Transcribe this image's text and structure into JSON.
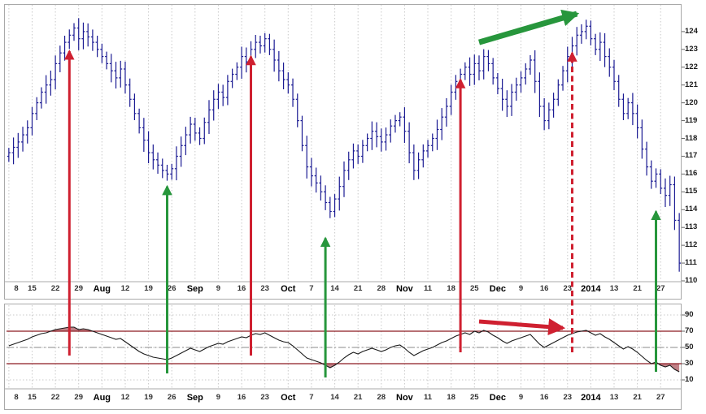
{
  "colors": {
    "bar": "#1b1b93",
    "rsi_line": "#1a1a1a",
    "threshold": "#8c1a22",
    "mid_line": "#8a8a8a",
    "grid": "#c9c9c9",
    "red_arrow": "#cf2030",
    "green_arrow": "#27963c",
    "band_fill": "#8c1a22",
    "panel_border": "#a9a9a9"
  },
  "x_ticks": [
    {
      "label": "8",
      "i": 0,
      "month": false
    },
    {
      "label": "15",
      "i": 5,
      "month": false
    },
    {
      "label": "22",
      "i": 10,
      "month": false
    },
    {
      "label": "29",
      "i": 15,
      "month": false
    },
    {
      "label": "Aug",
      "i": 20,
      "month": true
    },
    {
      "label": "12",
      "i": 25,
      "month": false
    },
    {
      "label": "19",
      "i": 30,
      "month": false
    },
    {
      "label": "26",
      "i": 35,
      "month": false
    },
    {
      "label": "Sep",
      "i": 40,
      "month": true
    },
    {
      "label": "9",
      "i": 45,
      "month": false
    },
    {
      "label": "16",
      "i": 50,
      "month": false
    },
    {
      "label": "23",
      "i": 55,
      "month": false
    },
    {
      "label": "Oct",
      "i": 60,
      "month": true
    },
    {
      "label": "7",
      "i": 65,
      "month": false
    },
    {
      "label": "14",
      "i": 70,
      "month": false
    },
    {
      "label": "21",
      "i": 75,
      "month": false
    },
    {
      "label": "28",
      "i": 80,
      "month": false
    },
    {
      "label": "Nov",
      "i": 85,
      "month": true
    },
    {
      "label": "11",
      "i": 90,
      "month": false
    },
    {
      "label": "18",
      "i": 95,
      "month": false
    },
    {
      "label": "25",
      "i": 100,
      "month": false
    },
    {
      "label": "Dec",
      "i": 105,
      "month": true
    },
    {
      "label": "9",
      "i": 110,
      "month": false
    },
    {
      "label": "16",
      "i": 115,
      "month": false
    },
    {
      "label": "23",
      "i": 120,
      "month": false
    },
    {
      "label": "2014",
      "i": 125,
      "month": true
    },
    {
      "label": "13",
      "i": 130,
      "month": false
    },
    {
      "label": "21",
      "i": 135,
      "month": false
    },
    {
      "label": "27",
      "i": 140,
      "month": false
    }
  ],
  "chart_data": [
    {
      "type": "ohlc",
      "panel": "price",
      "title": "",
      "xlabel": "",
      "ylabel": "",
      "ylim": [
        110,
        125.5
      ],
      "y_ticks": [
        124,
        123,
        122,
        121,
        120,
        119,
        118,
        117,
        116,
        115,
        114,
        113,
        112,
        111,
        110
      ],
      "grid": true,
      "closes": [
        117.2,
        117.5,
        117.8,
        118.2,
        118.6,
        119.4,
        120.0,
        120.6,
        121.0,
        121.3,
        122.2,
        122.8,
        123.4,
        123.8,
        124.2,
        123.6,
        124.0,
        123.7,
        123.4,
        123.0,
        122.6,
        122.2,
        121.8,
        121.4,
        121.9,
        121.0,
        120.2,
        119.4,
        118.6,
        117.9,
        117.2,
        116.8,
        116.5,
        116.2,
        116.0,
        116.3,
        117.0,
        117.6,
        118.2,
        118.8,
        118.3,
        118.0,
        118.9,
        119.6,
        120.2,
        120.6,
        120.3,
        121.2,
        121.6,
        122.0,
        122.6,
        122.3,
        123.0,
        123.4,
        123.2,
        123.6,
        123.0,
        122.4,
        121.8,
        121.3,
        121.0,
        120.2,
        119.0,
        117.6,
        116.4,
        115.9,
        115.5,
        115.0,
        114.4,
        113.9,
        114.6,
        115.3,
        116.2,
        116.8,
        117.3,
        117.0,
        117.6,
        118.0,
        118.4,
        118.1,
        117.8,
        118.2,
        118.7,
        119.0,
        119.2,
        118.4,
        117.2,
        116.2,
        116.8,
        117.3,
        117.6,
        118.0,
        118.5,
        119.2,
        119.8,
        120.6,
        121.2,
        121.6,
        122.0,
        121.6,
        122.2,
        121.8,
        122.6,
        122.2,
        121.4,
        120.8,
        120.2,
        119.8,
        120.6,
        121.0,
        121.4,
        121.9,
        122.4,
        121.2,
        119.8,
        119.0,
        119.6,
        120.2,
        121.0,
        121.8,
        122.6,
        123.2,
        123.8,
        124.0,
        124.3,
        123.6,
        123.0,
        123.4,
        122.6,
        122.0,
        121.2,
        120.2,
        119.4,
        120.0,
        119.4,
        118.6,
        117.4,
        116.4,
        115.6,
        116.0,
        115.2,
        114.8,
        115.4,
        113.4,
        111.0
      ]
    },
    {
      "type": "line",
      "panel": "oscillator",
      "title": "",
      "ylim": [
        0,
        102
      ],
      "y_ticks": [
        90,
        70,
        50,
        30,
        10
      ],
      "levels": {
        "overbought": 70,
        "mid": 50,
        "oversold": 30
      },
      "grid": true,
      "values": [
        52,
        54,
        56,
        58,
        60,
        63,
        65,
        67,
        68,
        70,
        72,
        73,
        74,
        75,
        75,
        72,
        73,
        72,
        70,
        68,
        66,
        64,
        62,
        60,
        61,
        57,
        53,
        49,
        45,
        42,
        40,
        38,
        37,
        36,
        35,
        37,
        40,
        43,
        46,
        49,
        47,
        45,
        48,
        51,
        53,
        55,
        54,
        57,
        59,
        61,
        63,
        62,
        65,
        67,
        66,
        68,
        65,
        62,
        59,
        57,
        56,
        52,
        47,
        42,
        37,
        35,
        33,
        31,
        28,
        25,
        28,
        32,
        37,
        41,
        44,
        42,
        45,
        47,
        49,
        47,
        45,
        47,
        50,
        52,
        53,
        49,
        44,
        40,
        43,
        46,
        48,
        50,
        53,
        56,
        58,
        61,
        64,
        66,
        68,
        66,
        70,
        68,
        71,
        69,
        65,
        62,
        58,
        55,
        58,
        60,
        62,
        64,
        66,
        60,
        54,
        50,
        53,
        56,
        59,
        62,
        65,
        67,
        69,
        70,
        71,
        68,
        65,
        67,
        63,
        60,
        56,
        52,
        48,
        51,
        48,
        44,
        39,
        34,
        30,
        32,
        28,
        26,
        28,
        23,
        20
      ]
    }
  ],
  "annotations": {
    "arrows": [
      {
        "id": "red-up-arrow-1",
        "color": "red",
        "style": "solid",
        "width": 3,
        "big": false,
        "from": {
          "panel": "rsi",
          "x": 13,
          "v": 40
        },
        "to": {
          "panel": "price",
          "x": 13,
          "v": 122.9
        }
      },
      {
        "id": "green-up-arrow-1",
        "color": "green",
        "style": "solid",
        "width": 3,
        "big": false,
        "from": {
          "panel": "rsi",
          "x": 34,
          "v": 18
        },
        "to": {
          "panel": "price",
          "x": 34,
          "v": 115.3
        }
      },
      {
        "id": "red-up-arrow-2",
        "color": "red",
        "style": "solid",
        "width": 3,
        "big": false,
        "from": {
          "panel": "rsi",
          "x": 52,
          "v": 40
        },
        "to": {
          "panel": "price",
          "x": 52,
          "v": 122.6
        }
      },
      {
        "id": "green-up-arrow-2",
        "color": "green",
        "style": "solid",
        "width": 3,
        "big": false,
        "from": {
          "panel": "rsi",
          "x": 68,
          "v": 13
        },
        "to": {
          "panel": "price",
          "x": 68,
          "v": 112.4
        }
      },
      {
        "id": "red-up-arrow-3",
        "color": "red",
        "style": "solid",
        "width": 3,
        "big": false,
        "from": {
          "panel": "rsi",
          "x": 97,
          "v": 44
        },
        "to": {
          "panel": "price",
          "x": 97,
          "v": 121.3
        }
      },
      {
        "id": "red-up-arrow-dashed",
        "color": "red",
        "style": "dashed",
        "width": 3,
        "big": false,
        "from": {
          "panel": "rsi",
          "x": 121,
          "v": 44
        },
        "to": {
          "panel": "price",
          "x": 121,
          "v": 122.8
        }
      },
      {
        "id": "green-up-arrow-3",
        "color": "green",
        "style": "solid",
        "width": 3,
        "big": false,
        "from": {
          "panel": "rsi",
          "x": 139,
          "v": 20
        },
        "to": {
          "panel": "price",
          "x": 139,
          "v": 113.9
        }
      },
      {
        "id": "green-breakout-arrow",
        "color": "green",
        "style": "solid",
        "width": 7,
        "big": true,
        "from": {
          "panel": "price",
          "x": 101,
          "v": 123.4
        },
        "to": {
          "panel": "price",
          "x": 122,
          "v": 125.0
        }
      },
      {
        "id": "red-divergence-arrow",
        "color": "red",
        "style": "solid",
        "width": 5,
        "big": false,
        "from": {
          "panel": "rsi",
          "x": 101,
          "v": 82
        },
        "to": {
          "panel": "rsi",
          "x": 119,
          "v": 74
        }
      }
    ]
  }
}
